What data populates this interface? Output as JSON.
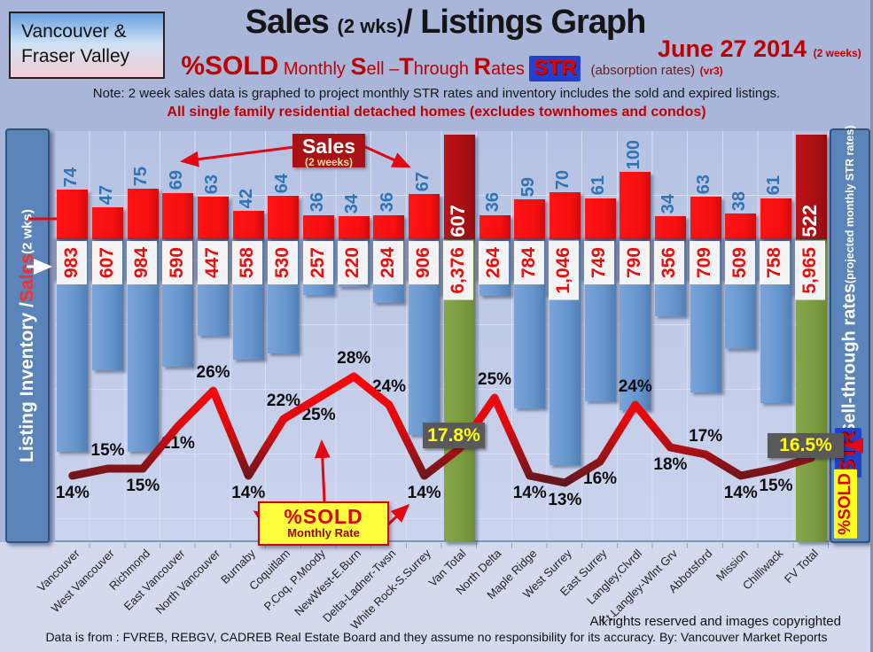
{
  "header": {
    "region_line1": "Vancouver &",
    "region_line2": "Fraser Valley",
    "title_main": "Sales",
    "title_small": "(2 wks)",
    "title_rest": "/ Listings Graph",
    "date_main": "June 27 2014",
    "date_small": "(2 weeks)",
    "subtitle_sold": "%SOLD",
    "subtitle_rates": [
      [
        "Monthly ",
        "n"
      ],
      [
        "S",
        "b"
      ],
      [
        "ell –",
        "n"
      ],
      [
        "T",
        "b"
      ],
      [
        "hrough ",
        "n"
      ],
      [
        "R",
        "b"
      ],
      [
        "ates ",
        "n"
      ]
    ],
    "subtitle_str": "STR",
    "subtitle_absorption": "(absorption rates)",
    "subtitle_version": "(vr3)",
    "note": "Note: 2 week sales data is graphed to project monthly STR rates and inventory includes the sold and expired listings.",
    "scope": "All single family residential detached homes (excludes townhomes and condos)"
  },
  "left_axis": {
    "part1": "Listing Inventory / ",
    "part2": "Sales",
    "part3": " (2 wks)"
  },
  "right_axis": {
    "main": "Sell-through rates",
    "paren": " (projected monthly STR rates)",
    "str_badge": "STR",
    "sold_badge": "%SOLD"
  },
  "annotations": {
    "sales_callout_title": "Sales",
    "sales_callout_sub": "(2 weeks)",
    "sold_callout_title": "%SOLD",
    "sold_callout_sub": "Monthly Rate",
    "van_total_rate": "17.8%",
    "fv_total_rate": "16.5%"
  },
  "footer": {
    "rights": "All rights reserved and  images copyrighted",
    "source": "Data is from : FVREB, REBGV, CADREB Real Estate Board and they assume no responsibility for its accuracy. By: Vancouver Market Reports"
  },
  "colors": {
    "page_bg": "#a9b6da",
    "plot_bg": "#c2cce8",
    "grid": "#d6dff4",
    "sales_bar": "#f50f0f",
    "inventory_bar": "#6696cf",
    "total_sales_bar": "#ab0f13",
    "total_inventory_bar": "#7c9b40",
    "str_line": "#e30613",
    "rate_box_bg": "#595959",
    "rate_box_text": "#ffff00",
    "callout_yellow": "#ffff3d",
    "callout_dark_red": "#a91114",
    "rail_blue": "#5b84ba"
  },
  "chart_data": {
    "type": "combo bar + line",
    "title": "Sales (2 wks)/ Listings Graph",
    "date": "June 27 2014 (2 weeks)",
    "grid": true,
    "left_axis_label": "Listing Inventory / Sales (2 wks)",
    "right_axis_label": "Sell-through rates (projected monthly STR rates)",
    "series": [
      {
        "name": "Sales (2 weeks)",
        "type": "bar",
        "direction": "up",
        "color": "#f50f0f"
      },
      {
        "name": "Listing Inventory",
        "type": "bar",
        "direction": "down",
        "color": "#6696cf"
      },
      {
        "name": "%SOLD Monthly Sell-Through Rate (STR)",
        "type": "line",
        "unit": "%",
        "color": "#e30613"
      }
    ],
    "regions": [
      {
        "name": "Vancouver",
        "sales": 74,
        "inventory": 983,
        "inventory_display": "983",
        "str_pct": 14,
        "str_label": "14%",
        "label_pos": "below",
        "is_total": false
      },
      {
        "name": "West Vancouver",
        "sales": 47,
        "inventory": 607,
        "inventory_display": "607",
        "str_pct": 15,
        "str_label": "15%",
        "label_pos": "above",
        "is_total": false
      },
      {
        "name": "Richmond",
        "sales": 75,
        "inventory": 984,
        "inventory_display": "984",
        "str_pct": 15,
        "str_label": "15%",
        "label_pos": "below",
        "is_total": false
      },
      {
        "name": "East Vancouver",
        "sales": 69,
        "inventory": 590,
        "inventory_display": "590",
        "str_pct": 21,
        "str_label": "21%",
        "label_pos": "below",
        "is_total": false
      },
      {
        "name": "North Vancouver",
        "sales": 63,
        "inventory": 447,
        "inventory_display": "447",
        "str_pct": 26,
        "str_label": "26%",
        "label_pos": "above",
        "is_total": false
      },
      {
        "name": "Burnaby",
        "sales": 42,
        "inventory": 558,
        "inventory_display": "558",
        "str_pct": 14,
        "str_label": "14%",
        "label_pos": "below",
        "is_total": false
      },
      {
        "name": "Coquitlam",
        "sales": 64,
        "inventory": 530,
        "inventory_display": "530",
        "str_pct": 22,
        "str_label": "22%",
        "label_pos": "above",
        "is_total": false
      },
      {
        "name": "P.Coq, P.Moody",
        "sales": 36,
        "inventory": 257,
        "inventory_display": "257",
        "str_pct": 25,
        "str_label": "25%",
        "label_pos": "below",
        "is_total": false
      },
      {
        "name": "NewWest-E.Burn",
        "sales": 34,
        "inventory": 220,
        "inventory_display": "220",
        "str_pct": 28,
        "str_label": "28%",
        "label_pos": "above",
        "is_total": false
      },
      {
        "name": "Delta-Ladner-Twsn",
        "sales": 36,
        "inventory": 294,
        "inventory_display": "294",
        "str_pct": 24,
        "str_label": "24%",
        "label_pos": "above",
        "is_total": false
      },
      {
        "name": "White Rock-S.Surrey",
        "sales": 67,
        "inventory": 906,
        "inventory_display": "906",
        "str_pct": 14,
        "str_label": "14%",
        "label_pos": "below",
        "is_total": false
      },
      {
        "name": "Van Total",
        "sales": 607,
        "inventory": 6376,
        "inventory_display": "6,376",
        "str_pct": 17.8,
        "str_label": "17.8%",
        "label_pos": "box",
        "is_total": true
      },
      {
        "name": "North Delta",
        "sales": 36,
        "inventory": 264,
        "inventory_display": "264",
        "str_pct": 25,
        "str_label": "25%",
        "label_pos": "above",
        "is_total": false
      },
      {
        "name": "Maple Ridge",
        "sales": 59,
        "inventory": 784,
        "inventory_display": "784",
        "str_pct": 14,
        "str_label": "14%",
        "label_pos": "below",
        "is_total": false
      },
      {
        "name": "West Surrey",
        "sales": 70,
        "inventory": 1046,
        "inventory_display": "1,046",
        "str_pct": 13,
        "str_label": "13%",
        "label_pos": "below",
        "is_total": false
      },
      {
        "name": "East Surrey",
        "sales": 61,
        "inventory": 749,
        "inventory_display": "749",
        "str_pct": 16,
        "str_label": "16%",
        "label_pos": "below",
        "is_total": false
      },
      {
        "name": "Langley,Clvrdl",
        "sales": 100,
        "inventory": 790,
        "inventory_display": "790",
        "str_pct": 24,
        "str_label": "24%",
        "label_pos": "above",
        "is_total": false
      },
      {
        "name": "Ft Langley-Wlnt Grv",
        "sales": 34,
        "inventory": 356,
        "inventory_display": "356",
        "str_pct": 18,
        "str_label": "18%",
        "label_pos": "below",
        "is_total": false
      },
      {
        "name": "Abbotsford",
        "sales": 63,
        "inventory": 709,
        "inventory_display": "709",
        "str_pct": 17,
        "str_label": "17%",
        "label_pos": "above",
        "is_total": false
      },
      {
        "name": "Mission",
        "sales": 38,
        "inventory": 509,
        "inventory_display": "509",
        "str_pct": 14,
        "str_label": "14%",
        "label_pos": "below",
        "is_total": false
      },
      {
        "name": "Chilliwack",
        "sales": 61,
        "inventory": 758,
        "inventory_display": "758",
        "str_pct": 15,
        "str_label": "15%",
        "label_pos": "below",
        "is_total": false
      },
      {
        "name": "FV Total",
        "sales": 522,
        "inventory": 5965,
        "inventory_display": "5,965",
        "str_pct": 16.5,
        "str_label": "16.5%",
        "label_pos": "box",
        "is_total": true
      }
    ]
  }
}
